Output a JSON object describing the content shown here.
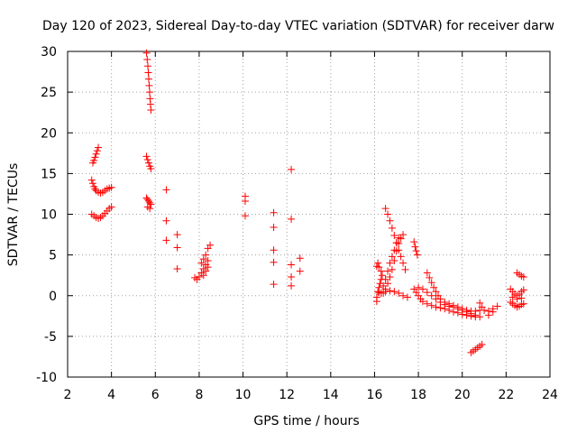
{
  "chart_data": {
    "type": "scatter",
    "title": "Day 120 of 2023, Sidereal Day-to-day VTEC variation (SDTVAR) for receiver darw",
    "xlabel": "GPS time / hours",
    "ylabel": "SDTVAR / TECUs",
    "xlim": [
      2,
      24
    ],
    "ylim": [
      -10,
      30
    ],
    "xticks": [
      2,
      4,
      6,
      8,
      10,
      12,
      14,
      16,
      18,
      20,
      22,
      24
    ],
    "yticks": [
      -10,
      -5,
      0,
      5,
      10,
      15,
      20,
      25,
      30
    ],
    "grid": true,
    "marker": "plus",
    "color": "#ff0000",
    "series": [
      {
        "name": "SDTVAR",
        "points": [
          [
            3.15,
            16.3
          ],
          [
            3.2,
            16.6
          ],
          [
            3.25,
            17.0
          ],
          [
            3.3,
            17.4
          ],
          [
            3.35,
            17.8
          ],
          [
            3.4,
            18.2
          ],
          [
            3.1,
            14.2
          ],
          [
            3.15,
            13.8
          ],
          [
            3.2,
            13.4
          ],
          [
            3.25,
            13.1
          ],
          [
            3.3,
            12.9
          ],
          [
            3.4,
            12.7
          ],
          [
            3.5,
            12.6
          ],
          [
            3.6,
            12.7
          ],
          [
            3.7,
            12.9
          ],
          [
            3.8,
            13.1
          ],
          [
            3.9,
            13.2
          ],
          [
            4.0,
            13.3
          ],
          [
            3.1,
            10.0
          ],
          [
            3.2,
            9.8
          ],
          [
            3.3,
            9.6
          ],
          [
            3.4,
            9.5
          ],
          [
            3.5,
            9.6
          ],
          [
            3.6,
            9.8
          ],
          [
            3.7,
            10.1
          ],
          [
            3.8,
            10.4
          ],
          [
            3.9,
            10.7
          ],
          [
            4.0,
            10.9
          ],
          [
            5.6,
            29.8
          ],
          [
            5.63,
            29.0
          ],
          [
            5.66,
            28.2
          ],
          [
            5.68,
            27.4
          ],
          [
            5.7,
            26.6
          ],
          [
            5.72,
            25.8
          ],
          [
            5.74,
            25.0
          ],
          [
            5.76,
            24.2
          ],
          [
            5.78,
            23.5
          ],
          [
            5.8,
            22.8
          ],
          [
            5.6,
            17.1
          ],
          [
            5.65,
            16.7
          ],
          [
            5.7,
            16.3
          ],
          [
            5.75,
            15.9
          ],
          [
            5.8,
            15.6
          ],
          [
            5.6,
            12.0
          ],
          [
            5.65,
            11.8
          ],
          [
            5.7,
            11.6
          ],
          [
            5.75,
            11.4
          ],
          [
            5.8,
            11.2
          ],
          [
            5.65,
            10.9
          ],
          [
            5.75,
            10.7
          ],
          [
            6.5,
            13.0
          ],
          [
            6.5,
            9.2
          ],
          [
            6.5,
            6.8
          ],
          [
            7.0,
            7.5
          ],
          [
            7.0,
            5.9
          ],
          [
            7.0,
            3.3
          ],
          [
            7.8,
            2.2
          ],
          [
            7.9,
            2.0
          ],
          [
            8.0,
            2.3
          ],
          [
            8.1,
            2.8
          ],
          [
            8.2,
            3.3
          ],
          [
            8.3,
            3.8
          ],
          [
            8.4,
            4.3
          ],
          [
            8.1,
            4.0
          ],
          [
            8.2,
            4.5
          ],
          [
            8.3,
            5.0
          ],
          [
            8.4,
            5.8
          ],
          [
            8.5,
            6.2
          ],
          [
            8.2,
            2.5
          ],
          [
            8.3,
            3.0
          ],
          [
            8.4,
            3.5
          ],
          [
            10.1,
            12.2
          ],
          [
            10.1,
            11.6
          ],
          [
            10.1,
            9.8
          ],
          [
            11.4,
            10.2
          ],
          [
            11.4,
            8.4
          ],
          [
            11.4,
            5.6
          ],
          [
            11.4,
            4.1
          ],
          [
            11.4,
            1.4
          ],
          [
            12.2,
            15.5
          ],
          [
            12.2,
            9.4
          ],
          [
            12.2,
            3.8
          ],
          [
            12.2,
            2.3
          ],
          [
            12.2,
            1.2
          ],
          [
            12.6,
            4.6
          ],
          [
            12.6,
            3.0
          ],
          [
            16.1,
            -0.7
          ],
          [
            16.1,
            -0.2
          ],
          [
            16.15,
            0.5
          ],
          [
            16.2,
            1.0
          ],
          [
            16.25,
            1.5
          ],
          [
            16.3,
            2.0
          ],
          [
            16.35,
            2.5
          ],
          [
            16.1,
            3.6
          ],
          [
            16.15,
            4.0
          ],
          [
            16.2,
            3.5
          ],
          [
            16.3,
            3.0
          ],
          [
            16.5,
            10.7
          ],
          [
            16.6,
            10.0
          ],
          [
            16.7,
            9.2
          ],
          [
            16.8,
            8.3
          ],
          [
            16.9,
            7.4
          ],
          [
            17.0,
            6.5
          ],
          [
            17.1,
            5.6
          ],
          [
            17.2,
            4.8
          ],
          [
            17.3,
            4.0
          ],
          [
            17.4,
            3.2
          ],
          [
            16.4,
            0.3
          ],
          [
            16.5,
            0.8
          ],
          [
            16.6,
            1.5
          ],
          [
            16.7,
            2.3
          ],
          [
            16.8,
            3.2
          ],
          [
            16.9,
            4.3
          ],
          [
            17.0,
            5.5
          ],
          [
            17.1,
            6.4
          ],
          [
            17.2,
            7.0
          ],
          [
            17.3,
            7.5
          ],
          [
            16.4,
            1.2
          ],
          [
            16.5,
            2.0
          ],
          [
            16.6,
            3.0
          ],
          [
            16.7,
            4.0
          ],
          [
            16.8,
            4.8
          ],
          [
            16.9,
            5.6
          ],
          [
            17.0,
            6.5
          ],
          [
            17.1,
            7.1
          ],
          [
            16.2,
            0.4
          ],
          [
            16.3,
            0.3
          ],
          [
            16.5,
            0.5
          ],
          [
            16.7,
            0.6
          ],
          [
            16.9,
            0.5
          ],
          [
            17.1,
            0.3
          ],
          [
            17.3,
            0.0
          ],
          [
            17.5,
            -0.2
          ],
          [
            17.8,
            6.6
          ],
          [
            17.85,
            6.0
          ],
          [
            17.9,
            5.5
          ],
          [
            17.95,
            5.0
          ],
          [
            17.8,
            0.8
          ],
          [
            17.9,
            0.4
          ],
          [
            18.0,
            0.0
          ],
          [
            18.1,
            -0.4
          ],
          [
            18.2,
            -0.7
          ],
          [
            18.4,
            -1.0
          ],
          [
            18.6,
            -1.2
          ],
          [
            18.8,
            -1.4
          ],
          [
            19.0,
            -1.5
          ],
          [
            19.2,
            -1.6
          ],
          [
            19.4,
            -1.8
          ],
          [
            19.6,
            -2.0
          ],
          [
            19.8,
            -2.1
          ],
          [
            20.0,
            -2.3
          ],
          [
            20.2,
            -2.4
          ],
          [
            20.4,
            -2.5
          ],
          [
            20.6,
            -2.6
          ],
          [
            18.4,
            2.8
          ],
          [
            18.5,
            2.2
          ],
          [
            18.6,
            1.6
          ],
          [
            18.7,
            1.0
          ],
          [
            18.8,
            0.5
          ],
          [
            18.9,
            0.0
          ],
          [
            19.0,
            -0.4
          ],
          [
            19.2,
            -0.8
          ],
          [
            19.4,
            -1.0
          ],
          [
            19.6,
            -1.2
          ],
          [
            19.8,
            -1.4
          ],
          [
            20.0,
            -1.6
          ],
          [
            20.2,
            -1.8
          ],
          [
            20.4,
            -1.9
          ],
          [
            20.6,
            -1.9
          ],
          [
            20.8,
            -1.8
          ],
          [
            18.0,
            1.0
          ],
          [
            18.2,
            0.8
          ],
          [
            18.4,
            0.4
          ],
          [
            18.6,
            0.0
          ],
          [
            18.8,
            -0.4
          ],
          [
            19.0,
            -0.8
          ],
          [
            19.2,
            -1.1
          ],
          [
            19.4,
            -1.3
          ],
          [
            19.6,
            -1.4
          ],
          [
            19.8,
            -1.6
          ],
          [
            20.0,
            -1.8
          ],
          [
            20.2,
            -2.0
          ],
          [
            20.4,
            -2.2
          ],
          [
            20.6,
            -2.4
          ],
          [
            20.8,
            -2.6
          ],
          [
            20.8,
            -0.9
          ],
          [
            20.9,
            -1.4
          ],
          [
            21.0,
            -1.8
          ],
          [
            21.2,
            -1.9
          ],
          [
            21.4,
            -1.6
          ],
          [
            21.6,
            -1.3
          ],
          [
            21.2,
            -2.4
          ],
          [
            21.4,
            -2.0
          ],
          [
            20.4,
            -7.0
          ],
          [
            20.5,
            -6.8
          ],
          [
            20.6,
            -6.6
          ],
          [
            20.7,
            -6.4
          ],
          [
            20.8,
            -6.2
          ],
          [
            20.9,
            -6.0
          ],
          [
            22.2,
            0.8
          ],
          [
            22.3,
            0.5
          ],
          [
            22.4,
            0.2
          ],
          [
            22.5,
            0.0
          ],
          [
            22.6,
            0.2
          ],
          [
            22.7,
            0.5
          ],
          [
            22.8,
            0.7
          ],
          [
            22.2,
            -0.8
          ],
          [
            22.3,
            -1.0
          ],
          [
            22.4,
            -1.2
          ],
          [
            22.5,
            -1.4
          ],
          [
            22.6,
            -1.3
          ],
          [
            22.7,
            -1.1
          ],
          [
            22.8,
            -1.0
          ],
          [
            22.5,
            2.8
          ],
          [
            22.6,
            2.6
          ],
          [
            22.7,
            2.4
          ],
          [
            22.8,
            2.3
          ],
          [
            22.3,
            -0.2
          ],
          [
            22.5,
            -0.4
          ],
          [
            22.7,
            -0.3
          ]
        ]
      }
    ]
  }
}
